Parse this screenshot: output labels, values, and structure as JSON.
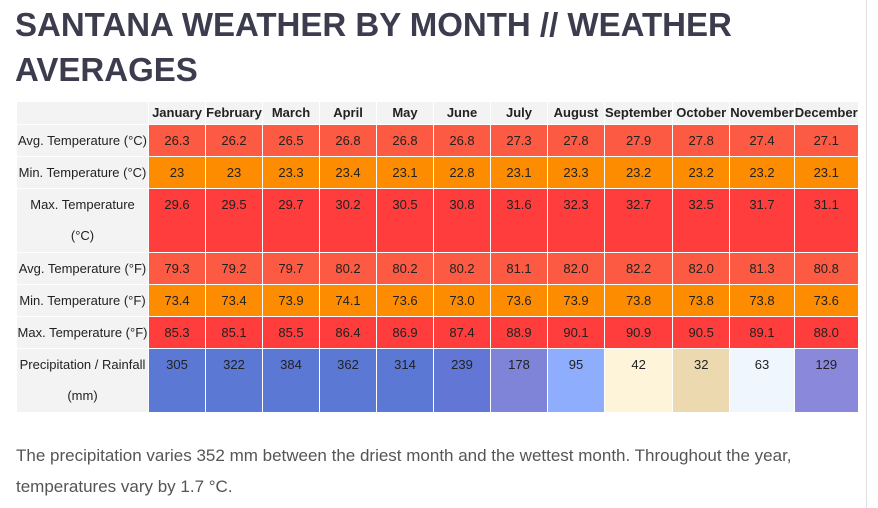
{
  "title": "SANTANA WEATHER BY MONTH // WEATHER AVERAGES",
  "months": [
    "January",
    "February",
    "March",
    "April",
    "May",
    "June",
    "July",
    "August",
    "September",
    "October",
    "November",
    "December"
  ],
  "rows": [
    {
      "label": "Avg. Temperature (°C)",
      "color": "#fc5a43",
      "values": [
        "26.3",
        "26.2",
        "26.5",
        "26.8",
        "26.8",
        "26.8",
        "27.3",
        "27.8",
        "27.9",
        "27.8",
        "27.4",
        "27.1"
      ]
    },
    {
      "label": "Min. Temperature (°C)",
      "color": "#fe8c00",
      "values": [
        "23",
        "23",
        "23.3",
        "23.4",
        "23.1",
        "22.8",
        "23.1",
        "23.3",
        "23.2",
        "23.2",
        "23.2",
        "23.1"
      ]
    },
    {
      "label": "Max. Temperature (°C)",
      "color": "#ff3d3d",
      "values": [
        "29.6",
        "29.5",
        "29.7",
        "30.2",
        "30.5",
        "30.8",
        "31.6",
        "32.3",
        "32.7",
        "32.5",
        "31.7",
        "31.1"
      ]
    },
    {
      "label": "Avg. Temperature (°F)",
      "color": "#fc5a43",
      "values": [
        "79.3",
        "79.2",
        "79.7",
        "80.2",
        "80.2",
        "80.2",
        "81.1",
        "82.0",
        "82.2",
        "82.0",
        "81.3",
        "80.8"
      ]
    },
    {
      "label": "Min. Temperature (°F)",
      "color": "#fe8c00",
      "values": [
        "73.4",
        "73.4",
        "73.9",
        "74.1",
        "73.6",
        "73.0",
        "73.6",
        "73.9",
        "73.8",
        "73.8",
        "73.8",
        "73.6"
      ]
    },
    {
      "label": "Max. Temperature (°F)",
      "color": "#ff3d3d",
      "values": [
        "85.3",
        "85.1",
        "85.5",
        "86.4",
        "86.9",
        "87.4",
        "88.9",
        "90.1",
        "90.9",
        "90.5",
        "89.1",
        "88.0"
      ]
    }
  ],
  "precipitation": {
    "label": "Precipitation / Rainfall (mm)",
    "values": [
      "305",
      "322",
      "384",
      "362",
      "314",
      "239",
      "178",
      "95",
      "42",
      "32",
      "63",
      "129"
    ],
    "colors": [
      "#5b78d4",
      "#5b78d4",
      "#5b78d4",
      "#5b78d4",
      "#5b78d4",
      "#6276d6",
      "#7f84d9",
      "#8eaefd",
      "#fdf4da",
      "#ecd9b0",
      "#eff6fd",
      "#8a88da"
    ]
  },
  "summary": "The precipitation varies 352 mm between the driest month and the wettest month. Throughout the year, temperatures vary by 1.7 °C."
}
